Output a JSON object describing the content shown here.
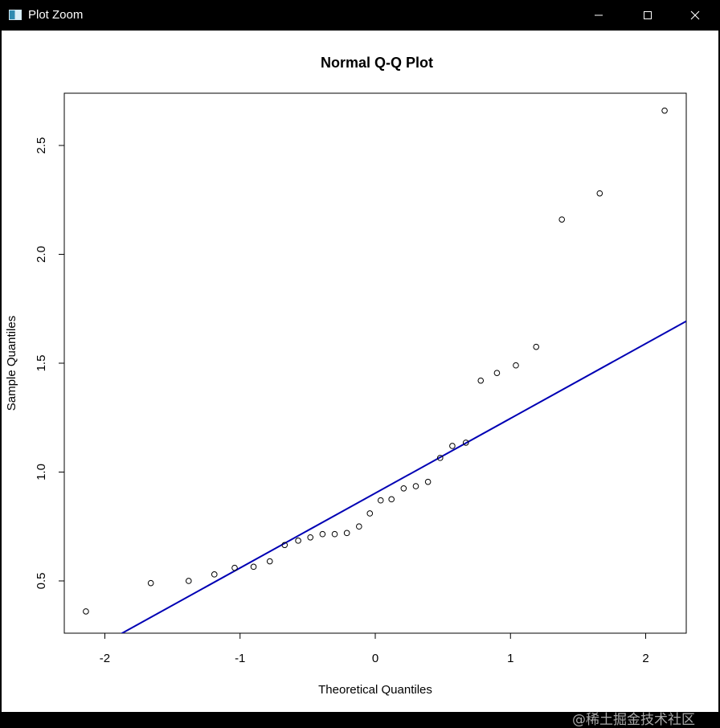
{
  "window": {
    "title": "Plot Zoom",
    "icons": {
      "app": "plot-window-icon",
      "minimize": "minimize-icon",
      "maximize": "maximize-icon",
      "close": "close-icon"
    }
  },
  "chart_data": {
    "type": "scatter",
    "title": "Normal Q-Q Plot",
    "xlabel": "Theoretical Quantiles",
    "ylabel": "Sample Quantiles",
    "xlim": [
      -2.3,
      2.3
    ],
    "ylim": [
      0.26,
      2.74
    ],
    "xticks": [
      -2,
      -1,
      0,
      1,
      2
    ],
    "xtick_labels": [
      "-2",
      "-1",
      "0",
      "1",
      "2"
    ],
    "yticks": [
      0.5,
      1.0,
      1.5,
      2.0,
      2.5
    ],
    "ytick_labels": [
      "0.5",
      "1.0",
      "1.5",
      "2.0",
      "2.5"
    ],
    "grid": false,
    "points": [
      [
        -2.14,
        0.36
      ],
      [
        -1.66,
        0.49
      ],
      [
        -1.38,
        0.5
      ],
      [
        -1.19,
        0.53
      ],
      [
        -1.04,
        0.56
      ],
      [
        -0.9,
        0.565
      ],
      [
        -0.78,
        0.59
      ],
      [
        -0.67,
        0.665
      ],
      [
        -0.57,
        0.685
      ],
      [
        -0.48,
        0.7
      ],
      [
        -0.39,
        0.715
      ],
      [
        -0.3,
        0.715
      ],
      [
        -0.21,
        0.72
      ],
      [
        -0.12,
        0.75
      ],
      [
        -0.04,
        0.81
      ],
      [
        0.04,
        0.87
      ],
      [
        0.12,
        0.875
      ],
      [
        0.21,
        0.925
      ],
      [
        0.3,
        0.935
      ],
      [
        0.39,
        0.955
      ],
      [
        0.48,
        1.065
      ],
      [
        0.57,
        1.12
      ],
      [
        0.67,
        1.135
      ],
      [
        0.78,
        1.42
      ],
      [
        0.9,
        1.455
      ],
      [
        1.04,
        1.49
      ],
      [
        1.19,
        1.575
      ],
      [
        1.38,
        2.16
      ],
      [
        1.66,
        2.28
      ],
      [
        2.14,
        2.66
      ]
    ],
    "qqline": {
      "color": "#0000B4",
      "intercept": 0.903,
      "slope": 0.3434
    },
    "point_color": "#000000"
  },
  "watermark": "@稀土掘金技术社区"
}
